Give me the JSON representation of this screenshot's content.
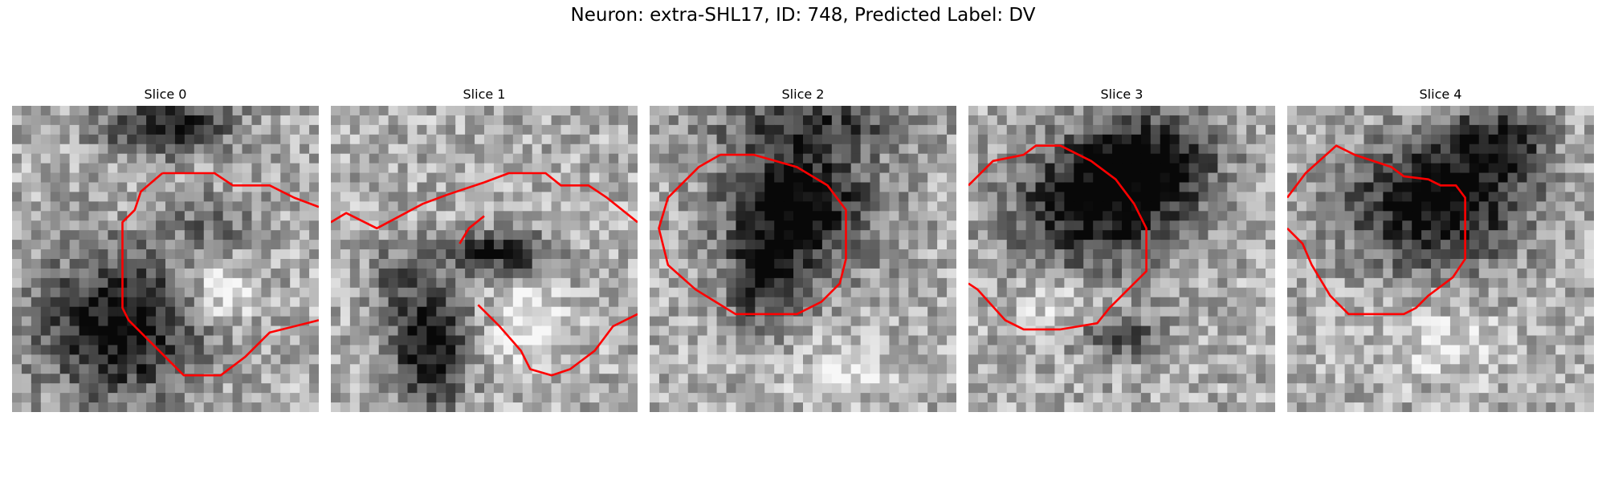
{
  "figure": {
    "title": "Neuron: extra-SHL17, ID: 748, Predicted Label: DV"
  },
  "panels": [
    {
      "title": "Slice 0"
    },
    {
      "title": "Slice 1"
    },
    {
      "title": "Slice 2"
    },
    {
      "title": "Slice 3"
    },
    {
      "title": "Slice 4"
    }
  ],
  "colors": {
    "contour": "#ff0000",
    "background": "#ffffff"
  }
}
